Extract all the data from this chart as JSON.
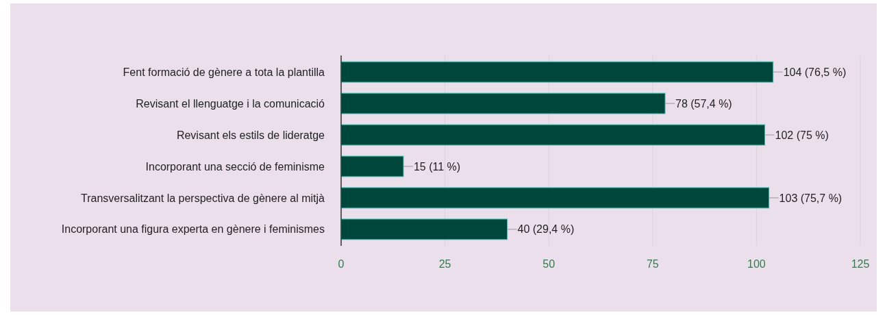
{
  "chart_data": {
    "type": "bar",
    "orientation": "horizontal",
    "categories": [
      "Fent formació de gènere a tota la plantilla",
      "Revisant el llenguatge i la comunicació",
      "Revisant els estils de lideratge",
      "Incorporant una secció de feminisme",
      "Transversalitzant la perspectiva de gènere al mitjà",
      "Incorporant una figura experta en gènere i feminismes"
    ],
    "values": [
      104,
      78,
      102,
      15,
      103,
      40
    ],
    "value_labels": [
      "104 (76,5 %)",
      "78 (57,4 %)",
      "102 (75 %)",
      "15 (11 %)",
      "103 (75,7 %)",
      "40 (29,4 %)"
    ],
    "color": "#00473b",
    "xlim": [
      0,
      125
    ],
    "xticks": [
      0,
      25,
      50,
      75,
      100,
      125
    ],
    "grid": "x"
  }
}
